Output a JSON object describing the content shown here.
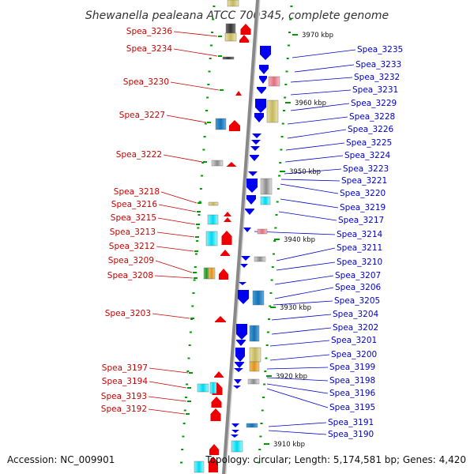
{
  "title": "Shewanella pealeana ATCC 700345, complete genome",
  "footer": {
    "accession": "Accession: NC_009901",
    "topology": "Topology: circular; Length: 5,174,581 bp; Genes: 4,420"
  },
  "colors": {
    "forward_strand": "#ee0000",
    "reverse_strand": "#0000ee",
    "axis": "#888888",
    "label_left": "#cc0000",
    "label_right": "#0000cc",
    "tick": "#009900"
  },
  "kbp_markers": [
    "3970 kbp",
    "3960 kbp",
    "3950 kbp",
    "3940 kbp",
    "3930 kbp",
    "3920 kbp",
    "3910 kbp"
  ],
  "left_labels": [
    "Spea_3236",
    "Spea_3234",
    "Spea_3230",
    "Spea_3227",
    "Spea_3222",
    "Spea_3218",
    "Spea_3216",
    "Spea_3215",
    "Spea_3213",
    "Spea_3212",
    "Spea_3209",
    "Spea_3208",
    "Spea_3203",
    "Spea_3197",
    "Spea_3194",
    "Spea_3193",
    "Spea_3192"
  ],
  "right_labels": [
    "Spea_3235",
    "Spea_3233",
    "Spea_3232",
    "Spea_3231",
    "Spea_3229",
    "Spea_3228",
    "Spea_3226",
    "Spea_3225",
    "Spea_3224",
    "Spea_3223",
    "Spea_3221",
    "Spea_3220",
    "Spea_3219",
    "Spea_3217",
    "Spea_3214",
    "Spea_3211",
    "Spea_3210",
    "Spea_3207",
    "Spea_3206",
    "Spea_3205",
    "Spea_3204",
    "Spea_3202",
    "Spea_3201",
    "Spea_3200",
    "Spea_3199",
    "Spea_3198",
    "Spea_3196",
    "Spea_3195",
    "Spea_3191",
    "Spea_3190"
  ]
}
